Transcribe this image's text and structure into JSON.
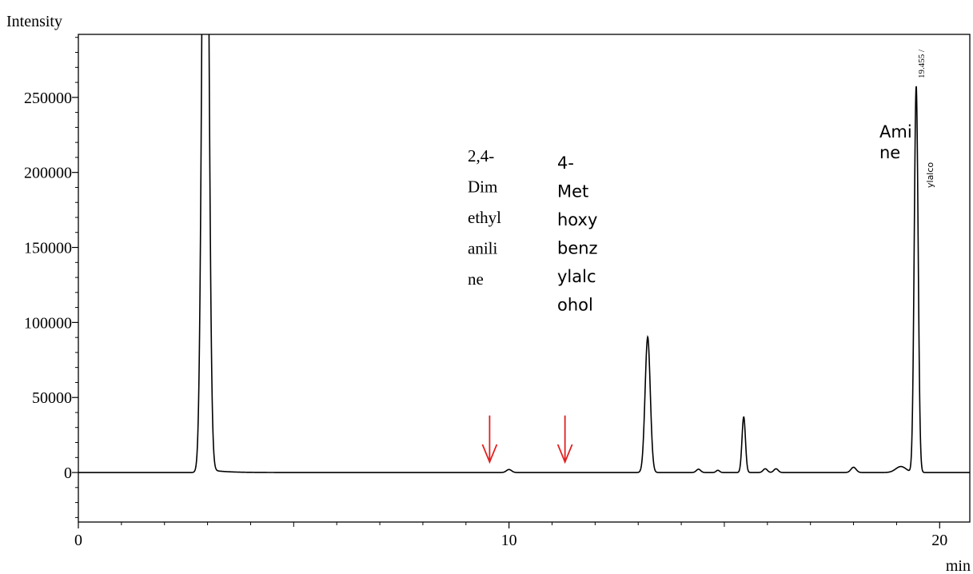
{
  "chart_data": {
    "type": "line",
    "ylabel": "Intensity",
    "xlabel": "min",
    "xlim": [
      0,
      20.7
    ],
    "ylim": [
      -33000,
      292000
    ],
    "x_ticks": [
      0,
      10,
      20
    ],
    "x_tick_labels": [
      "0",
      "10",
      "20"
    ],
    "y_ticks": [
      0,
      50000,
      100000,
      150000,
      200000,
      250000
    ],
    "y_tick_labels": [
      "0",
      "50000",
      "100000",
      "150000",
      "200000",
      "250000"
    ],
    "grid": false,
    "legend": "none",
    "line_color": "#000000",
    "arrow_color": "#e02020",
    "series": [
      {
        "baseline": 0,
        "peaks": [
          {
            "t": 2.95,
            "height": 600000,
            "width": 0.07,
            "tail": 0.35
          },
          {
            "t": 10.0,
            "height": 2000,
            "width": 0.06,
            "tail": 0.0
          },
          {
            "t": 13.22,
            "height": 90000,
            "width": 0.06,
            "tail": 0.05
          },
          {
            "t": 14.4,
            "height": 2200,
            "width": 0.05,
            "tail": 0.0
          },
          {
            "t": 14.85,
            "height": 1500,
            "width": 0.04,
            "tail": 0.0
          },
          {
            "t": 15.45,
            "height": 37000,
            "width": 0.04,
            "tail": 0.03
          },
          {
            "t": 15.95,
            "height": 2500,
            "width": 0.05,
            "tail": 0.0
          },
          {
            "t": 16.2,
            "height": 2500,
            "width": 0.05,
            "tail": 0.0
          },
          {
            "t": 18.0,
            "height": 3500,
            "width": 0.06,
            "tail": 0.0
          },
          {
            "t": 19.455,
            "height": 257000,
            "width": 0.045,
            "tail": 0.03
          }
        ],
        "bumps": [
          {
            "t": 19.1,
            "height": 4000,
            "width": 0.12
          }
        ]
      }
    ],
    "annotations": {
      "peak_top_label": "19.455 /",
      "peak_side_label": "ylalco",
      "dimethylaniline_lines": [
        "2,4-",
        "Dim",
        "ethyl",
        "anili",
        "ne"
      ],
      "methoxybenzyl_lines": [
        "4-",
        "Met",
        "hoxy",
        "benz",
        "ylalc",
        "ohol"
      ],
      "amine_lines": [
        "Ami",
        "ne"
      ]
    },
    "arrows": [
      {
        "t": 9.55,
        "from": 38000,
        "to": 7000
      },
      {
        "t": 11.3,
        "from": 38000,
        "to": 7000
      }
    ]
  }
}
